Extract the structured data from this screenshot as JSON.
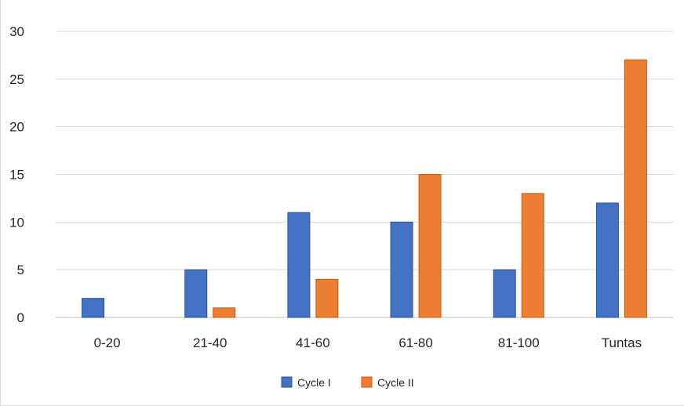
{
  "chart_data": {
    "type": "bar",
    "categories": [
      "0-20",
      "21-40",
      "41-60",
      "61-80",
      "81-100",
      "Tuntas"
    ],
    "series": [
      {
        "name": "Cycle I",
        "values": [
          2,
          5,
          11,
          10,
          5,
          12
        ]
      },
      {
        "name": "Cycle II",
        "values": [
          0,
          1,
          4,
          15,
          13,
          27
        ]
      }
    ],
    "yticks": [
      "0",
      "5",
      "10",
      "15",
      "20",
      "25",
      "30"
    ],
    "ylim": [
      0,
      30
    ],
    "grid": true,
    "legend_position": "bottom",
    "title": "",
    "xlabel": "",
    "ylabel": ""
  },
  "colors": {
    "Cycle I": "#4472c4",
    "Cycle II": "#ed7d31",
    "bar_border_cycle1": "#2f528f",
    "bar_border_cycle2": "#c55a11",
    "grid": "#d9d9d9",
    "axis": "#bfbfbf"
  }
}
